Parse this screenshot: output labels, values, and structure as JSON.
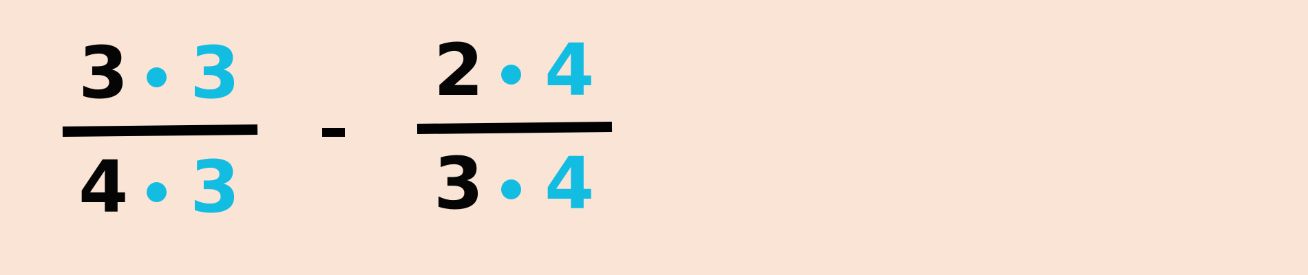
{
  "expression": {
    "fraction1": {
      "numerator": {
        "left": "3",
        "right": "3"
      },
      "denominator": {
        "left": "4",
        "right": "3"
      }
    },
    "operator": "-",
    "fraction2": {
      "numerator": {
        "left": "2",
        "right": "4"
      },
      "denominator": {
        "left": "3",
        "right": "4"
      }
    }
  },
  "colors": {
    "background": "#f9e4d6",
    "primary_text": "#050505",
    "accent": "#12bde1"
  },
  "icons": {
    "multiplication": "multiplication-dot-icon",
    "subtraction": "minus-sign-icon"
  }
}
